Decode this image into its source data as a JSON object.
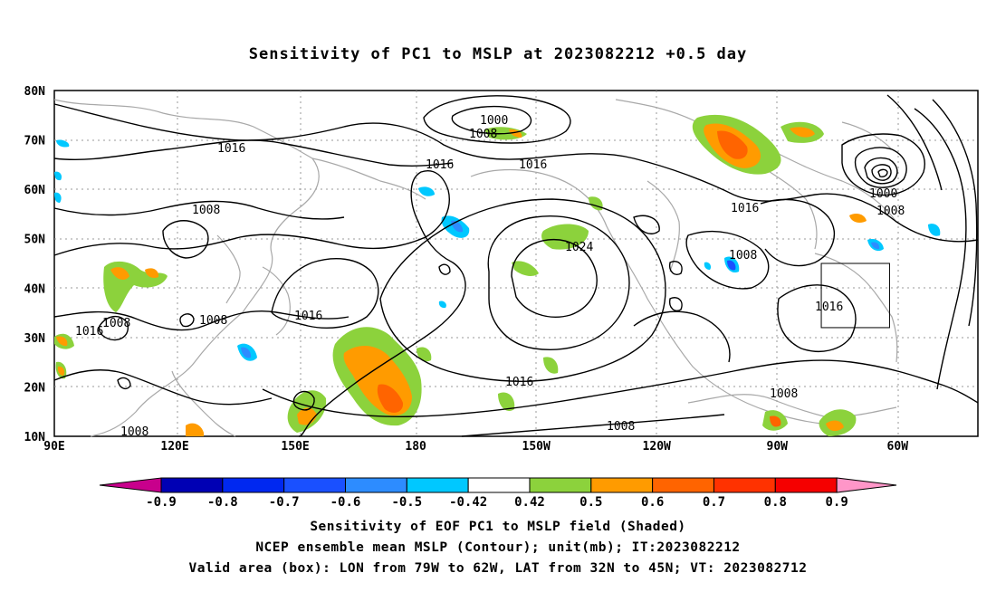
{
  "title": "Sensitivity of PC1 to MSLP at 2023082212 +0.5 day",
  "lat_labels": [
    "80N",
    "70N",
    "60N",
    "50N",
    "40N",
    "30N",
    "20N",
    "10N"
  ],
  "lon_labels": [
    "90E",
    "120E",
    "150E",
    "180",
    "150W",
    "120W",
    "90W",
    "60W"
  ],
  "contour_labels": [
    {
      "text": "1000"
    },
    {
      "text": "1008"
    },
    {
      "text": "1016"
    },
    {
      "text": "1016"
    },
    {
      "text": "1016"
    },
    {
      "text": "1008"
    },
    {
      "text": "1024"
    },
    {
      "text": "1016"
    },
    {
      "text": "1016"
    },
    {
      "text": "1008"
    },
    {
      "text": "1000"
    },
    {
      "text": "1008"
    },
    {
      "text": "1016"
    },
    {
      "text": "1008"
    },
    {
      "text": "1016"
    },
    {
      "text": "1016"
    },
    {
      "text": "1008"
    },
    {
      "text": "1008"
    },
    {
      "text": "1008"
    },
    {
      "text": "1008"
    }
  ],
  "colorbar": {
    "labels": [
      "-0.9",
      "-0.8",
      "-0.7",
      "-0.6",
      "-0.5",
      "-0.42",
      "0.42",
      "0.5",
      "0.6",
      "0.7",
      "0.8",
      "0.9"
    ],
    "colors": [
      "#c8008c",
      "#0000b4",
      "#0028f0",
      "#1a50ff",
      "#2d8cff",
      "#00c8ff",
      "#ffffff",
      "#8cd23c",
      "#ff9b00",
      "#ff6400",
      "#ff3200",
      "#f50000",
      "#ff96c8"
    ]
  },
  "box": {
    "lon_w": -79,
    "lon_e": -62,
    "lat_s": 32,
    "lat_n": 45
  },
  "footer": {
    "line1": "Sensitivity of EOF PC1 to MSLP field (Shaded)",
    "line2": "NCEP ensemble mean MSLP (Contour); unit(mb); IT:2023082212",
    "line3": "Valid area (box): LON from 79W to 62W, LAT from 32N to 45N; VT: 2023082712"
  }
}
